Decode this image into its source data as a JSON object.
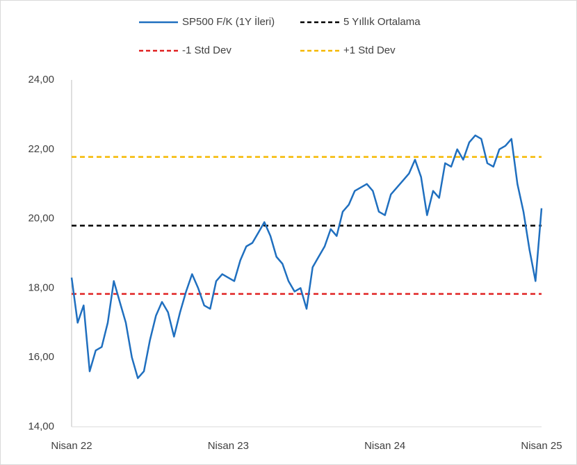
{
  "chart_data": {
    "type": "line",
    "categories": [
      "Nisan 22",
      null,
      null,
      null,
      null,
      null,
      null,
      null,
      null,
      null,
      null,
      null,
      null,
      null,
      null,
      null,
      null,
      null,
      null,
      null,
      null,
      null,
      null,
      null,
      null,
      null,
      "Nisan 23",
      null,
      null,
      null,
      null,
      null,
      null,
      null,
      null,
      null,
      null,
      null,
      null,
      null,
      null,
      null,
      null,
      null,
      null,
      null,
      null,
      null,
      null,
      null,
      null,
      null,
      "Nisan 24",
      null,
      null,
      null,
      null,
      null,
      null,
      null,
      null,
      null,
      null,
      null,
      null,
      null,
      null,
      null,
      null,
      null,
      null,
      null,
      null,
      null,
      null,
      null,
      null,
      null,
      "Nisan 25"
    ],
    "series": [
      {
        "name": "SP500 F/K (1Y İleri)",
        "color": "#1f6fbf",
        "values": [
          18.3,
          17.0,
          17.5,
          15.6,
          16.2,
          16.3,
          17.0,
          18.2,
          17.6,
          17.0,
          16.0,
          15.4,
          15.6,
          16.5,
          17.2,
          17.6,
          17.3,
          16.6,
          17.3,
          17.9,
          18.4,
          18.0,
          17.5,
          17.4,
          18.2,
          18.4,
          18.3,
          18.2,
          18.8,
          19.2,
          19.3,
          19.6,
          19.9,
          19.5,
          18.9,
          18.7,
          18.2,
          17.9,
          18.0,
          17.4,
          18.6,
          18.9,
          19.2,
          19.7,
          19.5,
          20.2,
          20.4,
          20.8,
          20.9,
          21.0,
          20.8,
          20.2,
          20.1,
          20.7,
          20.9,
          21.1,
          21.3,
          21.7,
          21.2,
          20.1,
          20.8,
          20.6,
          21.6,
          21.5,
          22.0,
          21.7,
          22.2,
          22.4,
          22.3,
          21.6,
          21.5,
          22.0,
          22.1,
          22.3,
          21.0,
          20.2,
          19.1,
          18.2,
          20.3
        ]
      }
    ],
    "reference_lines": [
      {
        "name": "5 Yıllık Ortalama",
        "color": "#000000",
        "value": 19.8
      },
      {
        "name": "-1 Std Dev",
        "color": "#e02020",
        "value": 17.83
      },
      {
        "name": "+1 Std Dev",
        "color": "#f5b800",
        "value": 21.78
      }
    ],
    "ylim": [
      14,
      24
    ],
    "yticks": [
      {
        "value": 14,
        "label": "14,00"
      },
      {
        "value": 16,
        "label": "16,00"
      },
      {
        "value": 18,
        "label": "18,00"
      },
      {
        "value": 20,
        "label": "20,00"
      },
      {
        "value": 22,
        "label": "22,00"
      },
      {
        "value": 24,
        "label": "24,00"
      }
    ],
    "legend": "top"
  }
}
